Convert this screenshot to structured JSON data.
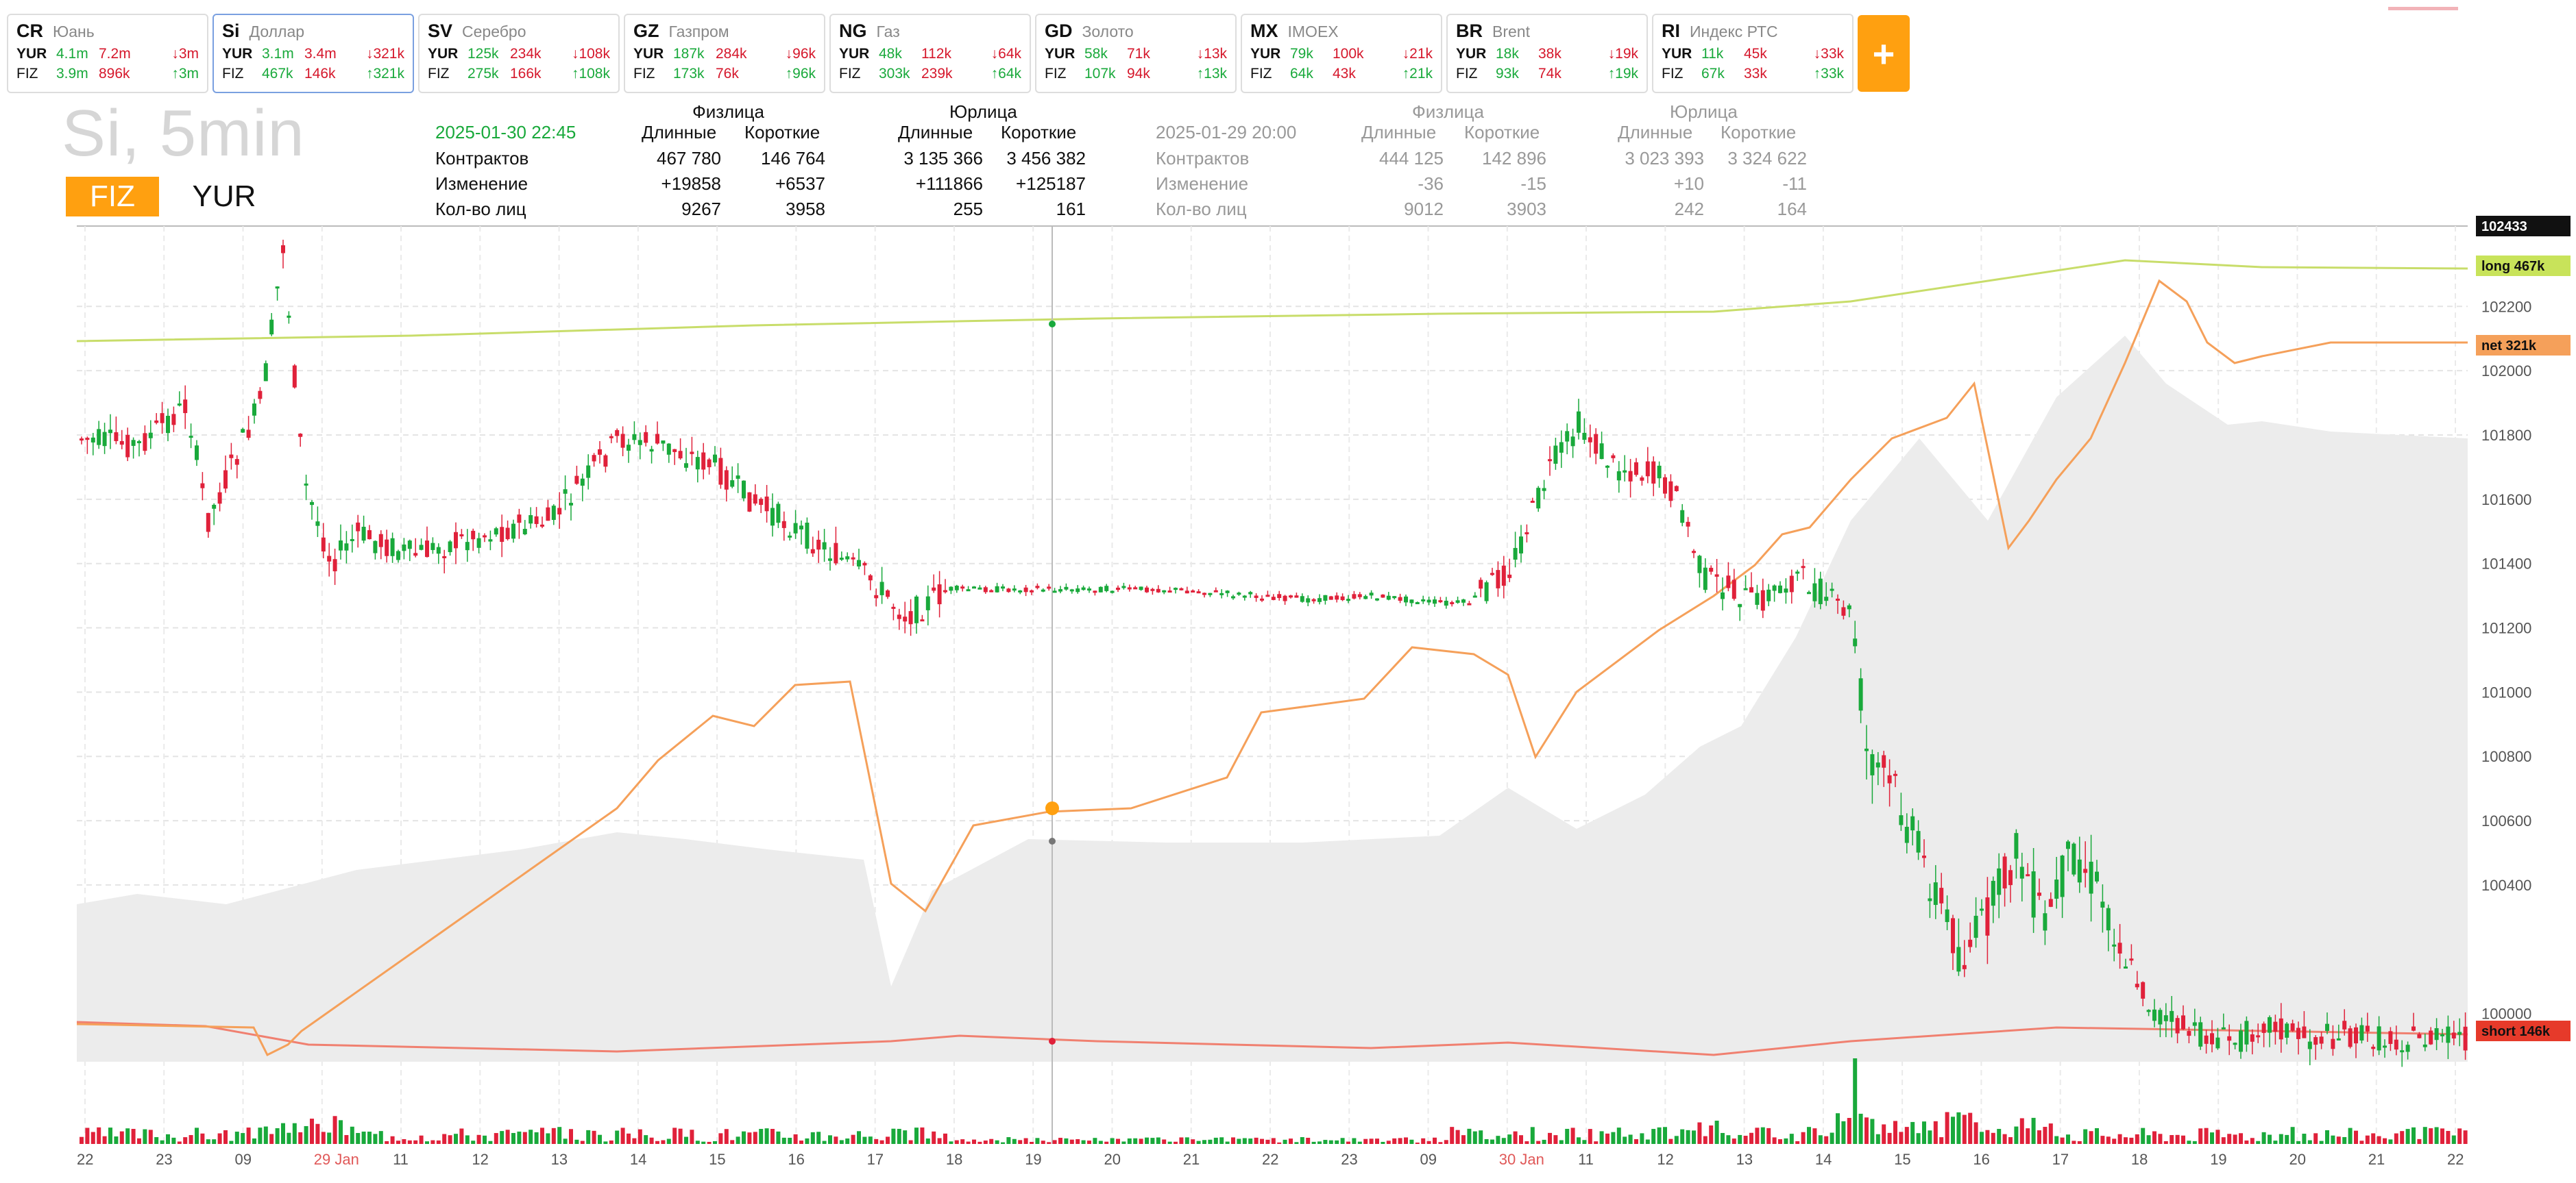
{
  "tickers": [
    {
      "code": "CR",
      "name": "Юань",
      "yur": [
        "4.1m",
        "7.2m",
        "↓3m"
      ],
      "fiz": [
        "3.9m",
        "896k",
        "↑3m"
      ],
      "yc": [
        "g",
        "r",
        "r"
      ],
      "fc": [
        "g",
        "r",
        "g"
      ]
    },
    {
      "code": "Si",
      "name": "Доллар",
      "yur": [
        "3.1m",
        "3.4m",
        "↓321k"
      ],
      "fiz": [
        "467k",
        "146k",
        "↑321k"
      ],
      "yc": [
        "g",
        "r",
        "r"
      ],
      "fc": [
        "g",
        "r",
        "g"
      ],
      "active": true
    },
    {
      "code": "SV",
      "name": "Серебро",
      "yur": [
        "125k",
        "234k",
        "↓108k"
      ],
      "fiz": [
        "275k",
        "166k",
        "↑108k"
      ],
      "yc": [
        "g",
        "r",
        "r"
      ],
      "fc": [
        "g",
        "r",
        "g"
      ]
    },
    {
      "code": "GZ",
      "name": "Газпром",
      "yur": [
        "187k",
        "284k",
        "↓96k"
      ],
      "fiz": [
        "173k",
        "76k",
        "↑96k"
      ],
      "yc": [
        "g",
        "r",
        "r"
      ],
      "fc": [
        "g",
        "r",
        "g"
      ]
    },
    {
      "code": "NG",
      "name": "Газ",
      "yur": [
        "48k",
        "112k",
        "↓64k"
      ],
      "fiz": [
        "303k",
        "239k",
        "↑64k"
      ],
      "yc": [
        "g",
        "r",
        "r"
      ],
      "fc": [
        "g",
        "r",
        "g"
      ]
    },
    {
      "code": "GD",
      "name": "Золото",
      "yur": [
        "58k",
        "71k",
        "↓13k"
      ],
      "fiz": [
        "107k",
        "94k",
        "↑13k"
      ],
      "yc": [
        "g",
        "r",
        "r"
      ],
      "fc": [
        "g",
        "r",
        "g"
      ]
    },
    {
      "code": "MX",
      "name": "IMOEX",
      "yur": [
        "79k",
        "100k",
        "↓21k"
      ],
      "fiz": [
        "64k",
        "43k",
        "↑21k"
      ],
      "yc": [
        "g",
        "r",
        "r"
      ],
      "fc": [
        "g",
        "r",
        "g"
      ]
    },
    {
      "code": "BR",
      "name": "Brent",
      "yur": [
        "18k",
        "38k",
        "↓19k"
      ],
      "fiz": [
        "93k",
        "74k",
        "↑19k"
      ],
      "yc": [
        "g",
        "r",
        "r"
      ],
      "fc": [
        "g",
        "r",
        "g"
      ]
    },
    {
      "code": "RI",
      "name": "Индекс РТС",
      "yur": [
        "11k",
        "45k",
        "↓33k"
      ],
      "fiz": [
        "67k",
        "33k",
        "↑33k"
      ],
      "yc": [
        "g",
        "r",
        "r"
      ],
      "fc": [
        "g",
        "r",
        "g"
      ]
    }
  ],
  "labels": {
    "yur": "YUR",
    "fiz": "FIZ",
    "plus": "+"
  },
  "title": "Si, 5min",
  "mode": {
    "fiz": "FIZ",
    "yur": "YUR"
  },
  "stats_current": {
    "date": "2025-01-30 22:45",
    "group_fiz": "Физлица",
    "group_yur": "Юрлица",
    "long": "Длинные",
    "short": "Короткие",
    "rows": [
      {
        "name": "Контрактов",
        "fl": "467 780",
        "fs": "146 764",
        "yl": "3 135 366",
        "ys": "3 456 382"
      },
      {
        "name": "Изменение",
        "fl": "+19858",
        "fs": "+6537",
        "yl": "+111866",
        "ys": "+125187"
      },
      {
        "name": "Кол-во лиц",
        "fl": "9267",
        "fs": "3958",
        "yl": "255",
        "ys": "161"
      }
    ]
  },
  "stats_prev": {
    "date": "2025-01-29 20:00",
    "group_fiz": "Физлица",
    "group_yur": "Юрлица",
    "long": "Длинные",
    "short": "Короткие",
    "rows": [
      {
        "name": "Контрактов",
        "fl": "444 125",
        "fs": "142 896",
        "yl": "3 023 393",
        "ys": "3 324 622"
      },
      {
        "name": "Изменение",
        "fl": "-36",
        "fs": "-15",
        "yl": "+10",
        "ys": "-11"
      },
      {
        "name": "Кол-во лиц",
        "fl": "9012",
        "fs": "3903",
        "yl": "242",
        "ys": "164"
      }
    ]
  },
  "chart_data": {
    "type": "candlestick",
    "price_axis": {
      "ticks": [
        "102200",
        "102000",
        "101800",
        "101600",
        "101400",
        "101200",
        "101000",
        "100800",
        "100600",
        "100400",
        "100000"
      ],
      "range": [
        99850,
        102450
      ],
      "last": "102433"
    },
    "x_ticks": [
      "22",
      "23",
      "09",
      "29 Jan",
      "11",
      "12",
      "13",
      "14",
      "15",
      "16",
      "17",
      "18",
      "19",
      "20",
      "21",
      "22",
      "23",
      "09",
      "30 Jan",
      "11",
      "12",
      "13",
      "14",
      "15",
      "16",
      "17",
      "18",
      "19",
      "20",
      "21",
      "22"
    ],
    "x_ticks_red": [
      "29 Jan",
      "30 Jan"
    ],
    "tags": {
      "long": "long 467k",
      "net": "net 321k",
      "short": "short 146k"
    },
    "colors": {
      "up": "#19a93b",
      "down": "#e0213a",
      "long": "#c8dd6a",
      "net": "#f5a05a",
      "short": "#f08070",
      "area": "#ececec"
    }
  }
}
